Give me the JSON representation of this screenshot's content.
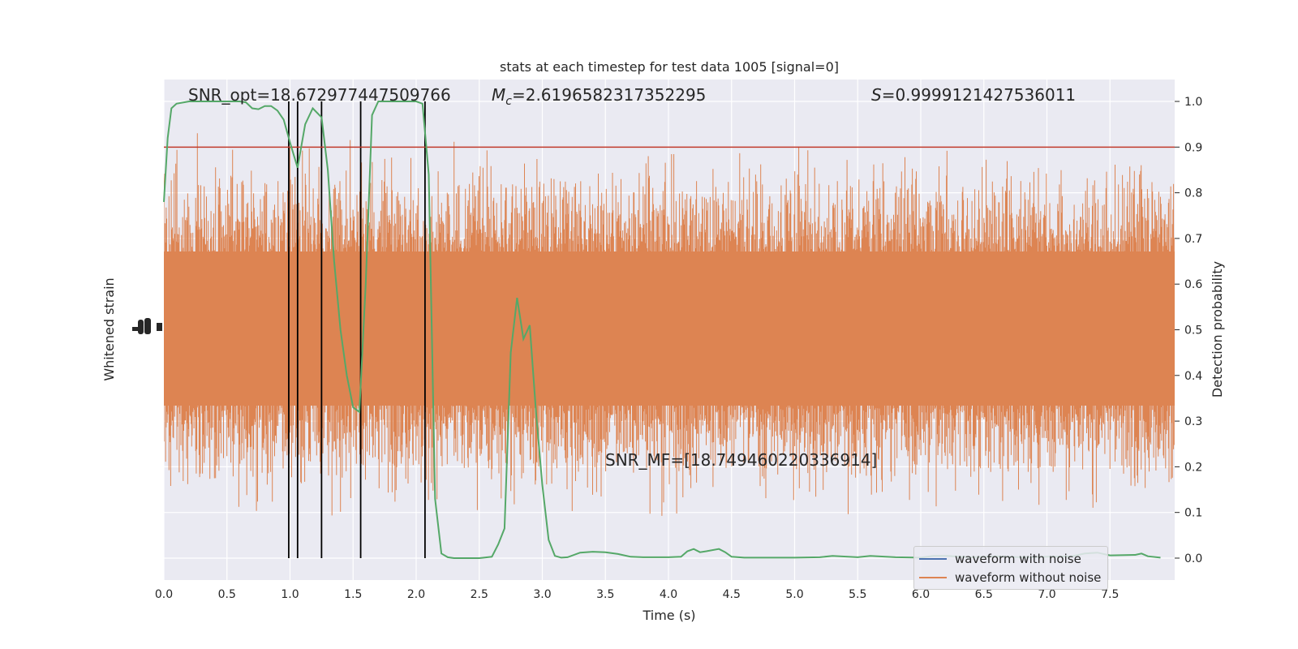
{
  "chart_data": {
    "type": "line",
    "title": "stats at each timestep for test data 1005 [signal=0]",
    "xlabel": "Time (s)",
    "ylabel_left": "Whitened strain",
    "ylabel_right": "Detection probability",
    "xlim": [
      0.0,
      8.0
    ],
    "ylim_right": [
      -0.048,
      1.048
    ],
    "x_ticks": [
      "0.0",
      "0.5",
      "1.0",
      "1.5",
      "2.0",
      "2.5",
      "3.0",
      "3.5",
      "4.0",
      "4.5",
      "5.0",
      "5.5",
      "6.0",
      "6.5",
      "7.0",
      "7.5"
    ],
    "y_ticks_right": [
      "0.0",
      "0.1",
      "0.2",
      "0.3",
      "0.4",
      "0.5",
      "0.6",
      "0.7",
      "0.8",
      "0.9",
      "1.0"
    ],
    "threshold": 0.9,
    "threshold_color": "#c0392b",
    "annotations": {
      "snr_opt": "SNR_opt=18.672977447509766",
      "mc_value": "=2.6196582317352295",
      "s_value": "=0.9999121427536011",
      "snr_mf": "SNR_MF=[18.749460220336914]"
    },
    "vlines_x": [
      0.99,
      1.06,
      1.25,
      1.56,
      2.07
    ],
    "series": [
      {
        "name": "waveform with noise",
        "color": "#4c72b0"
      },
      {
        "name": "waveform without noise",
        "color": "#dd8452"
      }
    ],
    "probability": {
      "color": "#55a868",
      "x": [
        0.0,
        0.03,
        0.06,
        0.1,
        0.2,
        0.3,
        0.4,
        0.5,
        0.6,
        0.65,
        0.7,
        0.75,
        0.8,
        0.85,
        0.9,
        0.95,
        1.0,
        1.06,
        1.12,
        1.18,
        1.25,
        1.3,
        1.35,
        1.4,
        1.45,
        1.5,
        1.55,
        1.6,
        1.65,
        1.7,
        1.8,
        1.9,
        2.0,
        2.05,
        2.1,
        2.15,
        2.2,
        2.25,
        2.3,
        2.4,
        2.5,
        2.6,
        2.65,
        2.7,
        2.75,
        2.8,
        2.85,
        2.9,
        2.95,
        3.0,
        3.05,
        3.1,
        3.15,
        3.2,
        3.3,
        3.4,
        3.5,
        3.6,
        3.7,
        3.8,
        3.9,
        4.0,
        4.1,
        4.15,
        4.2,
        4.25,
        4.3,
        4.4,
        4.45,
        4.5,
        4.6,
        4.8,
        5.0,
        5.2,
        5.3,
        5.5,
        5.6,
        5.8,
        6.0,
        6.1,
        6.2,
        6.4,
        6.6,
        6.8,
        7.0,
        7.2,
        7.3,
        7.4,
        7.5,
        7.7,
        7.75,
        7.8,
        7.9
      ],
      "y": [
        0.78,
        0.92,
        0.985,
        0.995,
        1.0,
        1.0,
        1.0,
        1.0,
        1.0,
        0.998,
        0.985,
        0.983,
        0.99,
        0.99,
        0.98,
        0.96,
        0.91,
        0.855,
        0.95,
        0.985,
        0.965,
        0.85,
        0.65,
        0.5,
        0.4,
        0.33,
        0.32,
        0.6,
        0.97,
        1.0,
        1.0,
        1.0,
        1.0,
        0.995,
        0.84,
        0.13,
        0.01,
        0.002,
        0.0,
        0.0,
        0.0,
        0.003,
        0.03,
        0.065,
        0.45,
        0.57,
        0.48,
        0.51,
        0.32,
        0.16,
        0.04,
        0.005,
        0.001,
        0.002,
        0.012,
        0.014,
        0.013,
        0.009,
        0.003,
        0.002,
        0.002,
        0.002,
        0.003,
        0.015,
        0.02,
        0.013,
        0.015,
        0.02,
        0.013,
        0.003,
        0.001,
        0.001,
        0.001,
        0.002,
        0.005,
        0.002,
        0.005,
        0.002,
        0.001,
        0.005,
        0.005,
        0.002,
        0.004,
        0.002,
        0.003,
        0.004,
        0.01,
        0.012,
        0.006,
        0.007,
        0.01,
        0.004,
        0.001
      ]
    }
  }
}
